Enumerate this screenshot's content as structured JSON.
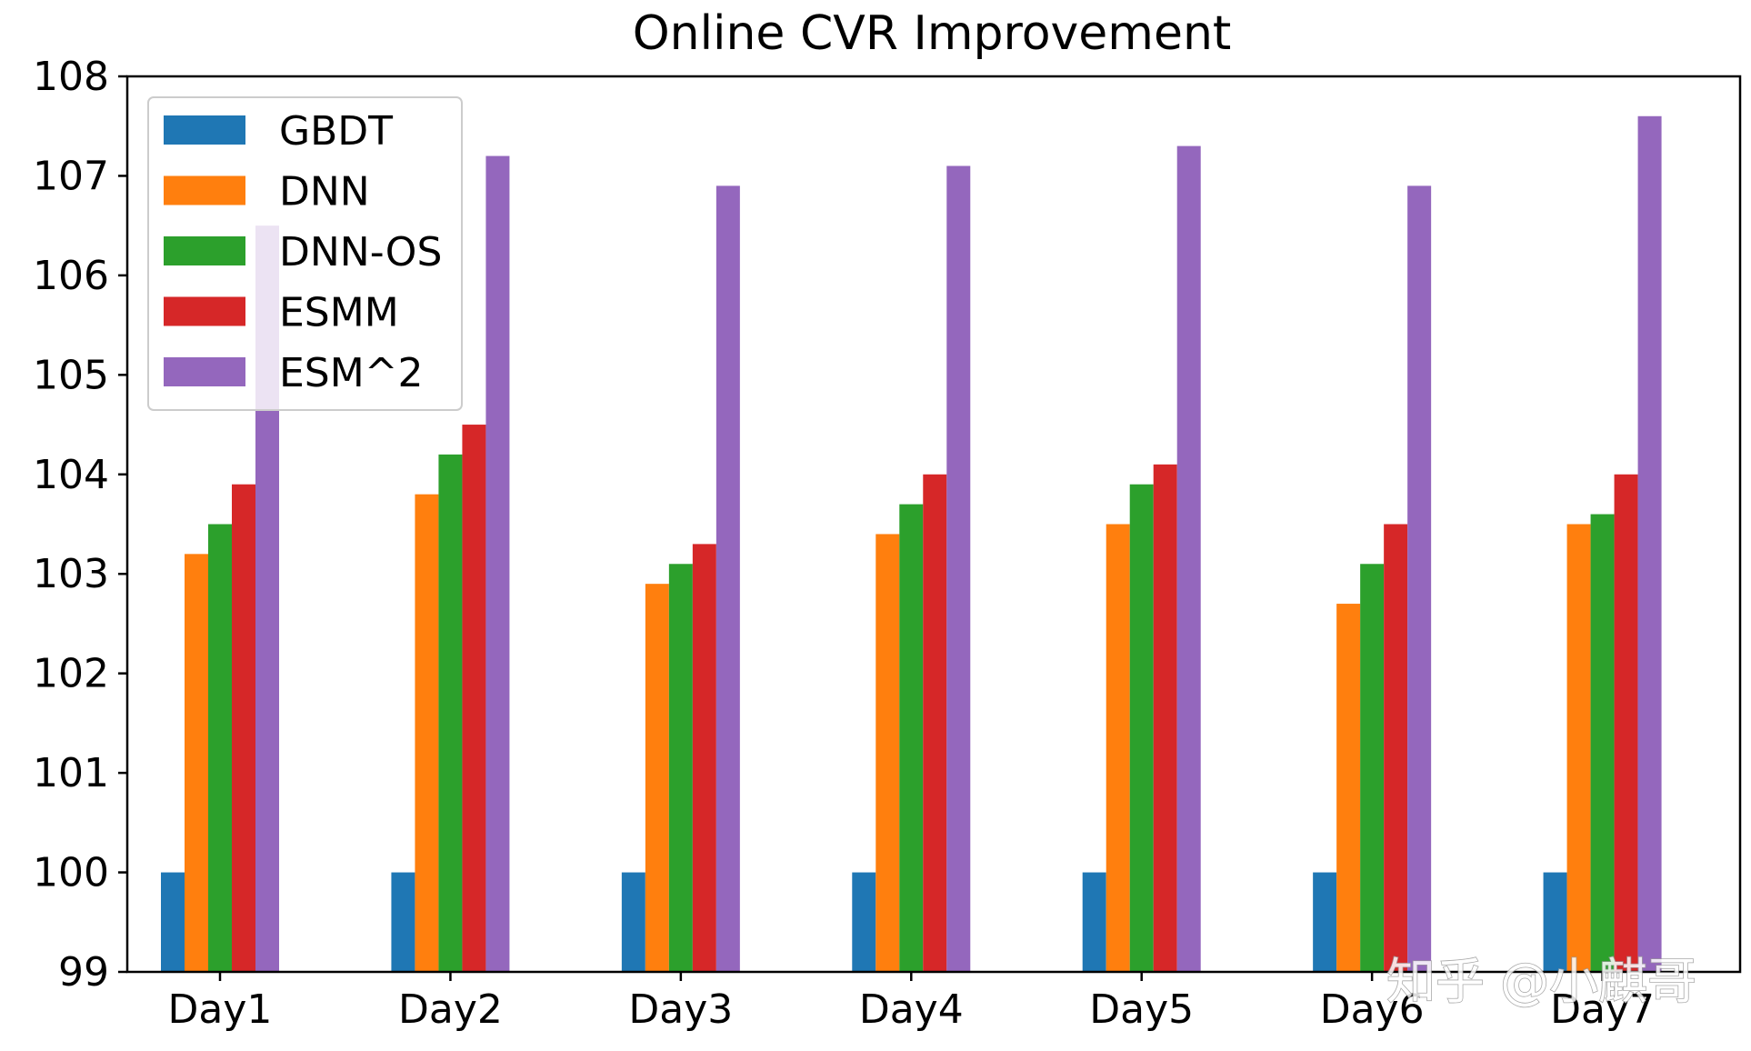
{
  "chart_data": {
    "type": "bar",
    "title": "Online CVR Improvement",
    "xlabel": "",
    "ylabel": "",
    "ylim": [
      99,
      108
    ],
    "yticks": [
      99,
      100,
      101,
      102,
      103,
      104,
      105,
      106,
      107,
      108
    ],
    "categories": [
      "Day1",
      "Day2",
      "Day3",
      "Day4",
      "Day5",
      "Day6",
      "Day7"
    ],
    "series": [
      {
        "name": "GBDT",
        "color": "#1f77b4",
        "values": [
          100,
          100,
          100,
          100,
          100,
          100,
          100
        ]
      },
      {
        "name": "DNN",
        "color": "#ff7f0e",
        "values": [
          103.2,
          103.8,
          102.9,
          103.4,
          103.5,
          102.7,
          103.5
        ]
      },
      {
        "name": "DNN-OS",
        "color": "#2ca02c",
        "values": [
          103.5,
          104.2,
          103.1,
          103.7,
          103.9,
          103.1,
          103.6
        ]
      },
      {
        "name": "ESMM",
        "color": "#d62728",
        "values": [
          103.9,
          104.5,
          103.3,
          104.0,
          104.1,
          103.5,
          104.0
        ]
      },
      {
        "name": "ESM^2",
        "color": "#9467bd",
        "values": [
          106.5,
          107.2,
          106.9,
          107.1,
          107.3,
          106.9,
          107.6
        ]
      }
    ],
    "legend": "top-left",
    "grid": false
  },
  "watermark": "知乎 @小麒哥"
}
